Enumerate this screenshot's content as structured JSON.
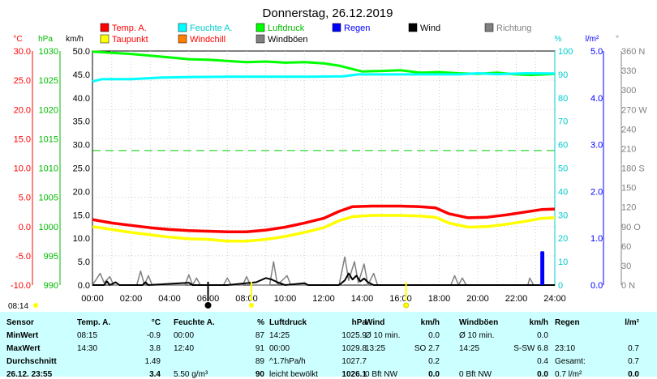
{
  "title": "Donnerstag, 26.12.2019",
  "colors": {
    "temp": "#ff0000",
    "dew": "#ffff00",
    "humidity": "#00ffff",
    "windchill": "#ff8000",
    "pressure": "#00ff00",
    "gust": "#808080",
    "rain": "#0000ff",
    "wind": "#000000",
    "direction": "#808080",
    "statsBg": "#ccffff"
  },
  "legend": [
    {
      "label": "Temp. A.",
      "color": "#ff0000",
      "textColor": "#ff0000"
    },
    {
      "label": "Feuchte A.",
      "color": "#00ffff",
      "textColor": "#00cccc"
    },
    {
      "label": "Luftdruck",
      "color": "#00ff00",
      "textColor": "#00bb00"
    },
    {
      "label": "Regen",
      "color": "#0000ff",
      "textColor": "#0000ff"
    },
    {
      "label": "Wind",
      "color": "#000000",
      "textColor": "#000000"
    },
    {
      "label": "Richtung",
      "color": "#808080",
      "textColor": "#808080"
    },
    {
      "label": "Taupunkt",
      "color": "#ffff00",
      "textColor": "#ff0000"
    },
    {
      "label": "Windchill",
      "color": "#ff8000",
      "textColor": "#ff0000"
    },
    {
      "label": "Windböen",
      "color": "#808080",
      "textColor": "#000000"
    }
  ],
  "chart_data": {
    "type": "line",
    "title": "Donnerstag, 26.12.2019",
    "x_range": [
      "00:00",
      "24:00"
    ],
    "x_ticks": [
      "00:00",
      "02:00",
      "04:00",
      "06:00",
      "08:00",
      "10:00",
      "12:00",
      "14:00",
      "16:00",
      "18:00",
      "20:00",
      "22:00",
      "24:00"
    ],
    "axes": {
      "temp": {
        "unit": "°C",
        "range": [
          -10,
          30
        ],
        "ticks": [
          "30.0",
          "25.0",
          "20.0",
          "15.0",
          "10.0",
          "5.0",
          "0.0",
          "-5.0",
          "-10.0"
        ]
      },
      "pressure": {
        "unit": "hPa",
        "range": [
          990,
          1030
        ],
        "ticks": [
          "1030",
          "1025",
          "1020",
          "1015",
          "1010",
          "1005",
          "1000",
          "995",
          "990"
        ]
      },
      "wind": {
        "unit": "km/h",
        "range": [
          0,
          50
        ],
        "ticks": [
          "50.0",
          "45.0",
          "40.0",
          "35.0",
          "30.0",
          "25.0",
          "20.0",
          "15.0",
          "10.0",
          "5.0",
          "0.0"
        ]
      },
      "humidity": {
        "unit": "%",
        "range": [
          0,
          100
        ],
        "ticks": [
          "100",
          "90",
          "80",
          "70",
          "60",
          "50",
          "40",
          "30",
          "20",
          "10",
          "0"
        ]
      },
      "rain": {
        "unit": "l/m²",
        "range": [
          0,
          5
        ],
        "ticks": [
          "5.0",
          "4.0",
          "3.0",
          "2.0",
          "1.0",
          "0.0"
        ]
      },
      "direction": {
        "unit": "°",
        "range": [
          0,
          360
        ],
        "ticks": [
          "360 N",
          "330",
          "300",
          "270 W",
          "240",
          "210",
          "180 S",
          "150",
          "120",
          "90 O",
          "60",
          "30",
          "0 N"
        ]
      }
    },
    "grid": true,
    "legend_position": "top",
    "series": [
      {
        "name": "Temp. A.",
        "axis": "temp",
        "points": [
          [
            0,
            1.2
          ],
          [
            1,
            0.6
          ],
          [
            2,
            0.2
          ],
          [
            3,
            -0.2
          ],
          [
            4,
            -0.5
          ],
          [
            5,
            -0.7
          ],
          [
            6,
            -0.8
          ],
          [
            7,
            -0.9
          ],
          [
            8,
            -0.9
          ],
          [
            9,
            -0.6
          ],
          [
            10,
            -0.1
          ],
          [
            11,
            0.6
          ],
          [
            12,
            1.4
          ],
          [
            12.8,
            2.6
          ],
          [
            13.5,
            3.4
          ],
          [
            14.5,
            3.5
          ],
          [
            16,
            3.5
          ],
          [
            17,
            3.4
          ],
          [
            17.8,
            3.2
          ],
          [
            18.5,
            2.2
          ],
          [
            19.5,
            1.5
          ],
          [
            20.5,
            1.6
          ],
          [
            21.5,
            2.0
          ],
          [
            22.5,
            2.5
          ],
          [
            23.3,
            2.9
          ],
          [
            24,
            3.0
          ]
        ]
      },
      {
        "name": "Taupunkt",
        "axis": "temp",
        "points": [
          [
            0,
            0.0
          ],
          [
            1,
            -0.5
          ],
          [
            2,
            -1.0
          ],
          [
            3,
            -1.4
          ],
          [
            4,
            -1.8
          ],
          [
            5,
            -2.1
          ],
          [
            6,
            -2.2
          ],
          [
            7,
            -2.5
          ],
          [
            8,
            -2.5
          ],
          [
            9,
            -2.2
          ],
          [
            10,
            -1.7
          ],
          [
            11,
            -1.0
          ],
          [
            12,
            -0.2
          ],
          [
            12.8,
            1.0
          ],
          [
            13.5,
            1.7
          ],
          [
            14.5,
            1.9
          ],
          [
            16,
            1.9
          ],
          [
            17,
            1.8
          ],
          [
            17.8,
            1.6
          ],
          [
            18.5,
            0.6
          ],
          [
            19.5,
            -0.1
          ],
          [
            20.5,
            0.0
          ],
          [
            21.5,
            0.4
          ],
          [
            22.5,
            0.9
          ],
          [
            23.3,
            1.4
          ],
          [
            24,
            1.5
          ]
        ]
      },
      {
        "name": "Feuchte A.",
        "axis": "humidity",
        "points": [
          [
            0,
            87
          ],
          [
            0.5,
            88
          ],
          [
            2,
            88
          ],
          [
            3.5,
            88.6
          ],
          [
            5,
            88.9
          ],
          [
            7,
            89
          ],
          [
            9,
            89
          ],
          [
            11,
            89
          ],
          [
            13,
            89.2
          ],
          [
            13.8,
            90
          ],
          [
            15,
            90
          ],
          [
            17,
            90
          ],
          [
            19,
            90
          ],
          [
            20,
            90.5
          ],
          [
            21,
            90.1
          ],
          [
            22.5,
            90.5
          ],
          [
            24,
            90.4
          ]
        ]
      },
      {
        "name": "Luftdruck",
        "axis": "pressure",
        "points": [
          [
            0,
            1029.9
          ],
          [
            1,
            1029.7
          ],
          [
            2,
            1029.5
          ],
          [
            3,
            1029.2
          ],
          [
            4,
            1028.9
          ],
          [
            5,
            1028.6
          ],
          [
            6,
            1028.5
          ],
          [
            7,
            1028.3
          ],
          [
            8,
            1028.1
          ],
          [
            9,
            1028.2
          ],
          [
            10,
            1028.0
          ],
          [
            11,
            1028.1
          ],
          [
            12,
            1027.9
          ],
          [
            12.8,
            1027.5
          ],
          [
            14,
            1026.5
          ],
          [
            15,
            1026.6
          ],
          [
            16,
            1026.7
          ],
          [
            17,
            1026.3
          ],
          [
            18,
            1026.4
          ],
          [
            19,
            1026.2
          ],
          [
            20,
            1026.1
          ],
          [
            21,
            1026.3
          ],
          [
            22,
            1026.0
          ],
          [
            22.8,
            1025.9
          ],
          [
            24,
            1026.1
          ]
        ]
      },
      {
        "name": "Wind",
        "axis": "wind",
        "points": [
          [
            0,
            0
          ],
          [
            0.6,
            0
          ],
          [
            0.75,
            0.8
          ],
          [
            0.9,
            0
          ],
          [
            1.2,
            0.6
          ],
          [
            1.4,
            0
          ],
          [
            2.6,
            0
          ],
          [
            2.75,
            0.6
          ],
          [
            2.9,
            0
          ],
          [
            5.0,
            0.5
          ],
          [
            5.2,
            0
          ],
          [
            6.5,
            0
          ],
          [
            7,
            0
          ],
          [
            8.5,
            0.6
          ],
          [
            9,
            1.5
          ],
          [
            9.3,
            1.2
          ],
          [
            9.6,
            0.6
          ],
          [
            10,
            0
          ],
          [
            11,
            0.4
          ],
          [
            11.2,
            0
          ],
          [
            12.8,
            0
          ],
          [
            13.1,
            1.0
          ],
          [
            13.3,
            2.5
          ],
          [
            13.5,
            1.2
          ],
          [
            13.7,
            2.0
          ],
          [
            13.9,
            0.8
          ],
          [
            14.1,
            1.4
          ],
          [
            14.3,
            0.6
          ],
          [
            14.6,
            0
          ],
          [
            24,
            0
          ]
        ]
      },
      {
        "name": "Windböen",
        "axis": "wind",
        "points": [
          [
            0,
            0
          ],
          [
            0.4,
            2.5
          ],
          [
            0.6,
            0.5
          ],
          [
            0.9,
            1.8
          ],
          [
            1.1,
            0
          ],
          [
            2.3,
            0
          ],
          [
            2.5,
            3.0
          ],
          [
            2.7,
            0
          ],
          [
            2.9,
            2.0
          ],
          [
            3.1,
            0
          ],
          [
            4.8,
            0
          ],
          [
            5.0,
            2.2
          ],
          [
            5.2,
            0
          ],
          [
            5.4,
            1.5
          ],
          [
            5.6,
            0
          ],
          [
            6.8,
            0
          ],
          [
            7.0,
            1.5
          ],
          [
            7.2,
            0
          ],
          [
            7.8,
            0
          ],
          [
            8.0,
            1.8
          ],
          [
            8.2,
            0
          ],
          [
            9.2,
            0
          ],
          [
            9.4,
            5.0
          ],
          [
            9.6,
            0
          ],
          [
            10.1,
            2.0
          ],
          [
            10.3,
            0
          ],
          [
            12.8,
            0
          ],
          [
            13.1,
            6.0
          ],
          [
            13.3,
            1.0
          ],
          [
            13.6,
            5.0
          ],
          [
            13.8,
            0.5
          ],
          [
            14.1,
            4.5
          ],
          [
            14.3,
            0
          ],
          [
            14.6,
            2.5
          ],
          [
            14.8,
            0
          ],
          [
            18.6,
            0
          ],
          [
            18.8,
            2.0
          ],
          [
            19.0,
            0
          ],
          [
            19.2,
            1.5
          ],
          [
            19.4,
            0
          ],
          [
            22.6,
            0
          ],
          [
            22.7,
            1.5
          ],
          [
            22.9,
            0
          ],
          [
            24,
            0
          ]
        ]
      },
      {
        "name": "Regen",
        "axis": "rain",
        "points": [
          [
            23.3,
            0
          ],
          [
            23.3,
            0.7
          ],
          [
            23.4,
            0.7
          ],
          [
            23.4,
            0
          ]
        ]
      }
    ],
    "annotations": {
      "sunrise": "08:14",
      "sunset": "16:17",
      "night_markers": [
        "06:00",
        "08:00",
        "16:00"
      ]
    }
  },
  "stats": {
    "headers": [
      "Sensor",
      "Temp. A.",
      "°C",
      "Feuchte A.",
      "%",
      "Luftdruck",
      "hPa",
      "Wind",
      "km/h",
      "Windböen",
      "km/h",
      "Regen",
      "l/m²"
    ],
    "rows": [
      {
        "label": "MinWert",
        "cells": [
          "08:15",
          "-0.9",
          "00:00",
          "87",
          "14:25",
          "1025.9",
          "Ø 10 min.",
          "0.0",
          "Ø 10 min.",
          "0.0",
          "",
          ""
        ]
      },
      {
        "label": "MaxWert",
        "cells": [
          "14:30",
          "3.8",
          "12:40",
          "91",
          "00:00",
          "1029.8",
          "13:25",
          "SO 2.7",
          "14:25",
          "S-SW 6.8",
          "23:10",
          "0.7"
        ]
      },
      {
        "label": "Durchschnitt",
        "cells": [
          "",
          "1.49",
          "",
          "89",
          "^1.7hPa/h",
          "1027.7",
          "",
          "0.2",
          "",
          "0.4",
          "Gesamt:",
          "0.7"
        ]
      },
      {
        "label": "26.12. 23:55",
        "cells": [
          "",
          "3.4",
          "5.50 g/m³",
          "90",
          "leicht bewölkt",
          "1026.1",
          "0 Bft NW",
          "0.0",
          "0 Bft NW",
          "0.0",
          "0.7 l/m²",
          "0.0"
        ]
      }
    ]
  }
}
